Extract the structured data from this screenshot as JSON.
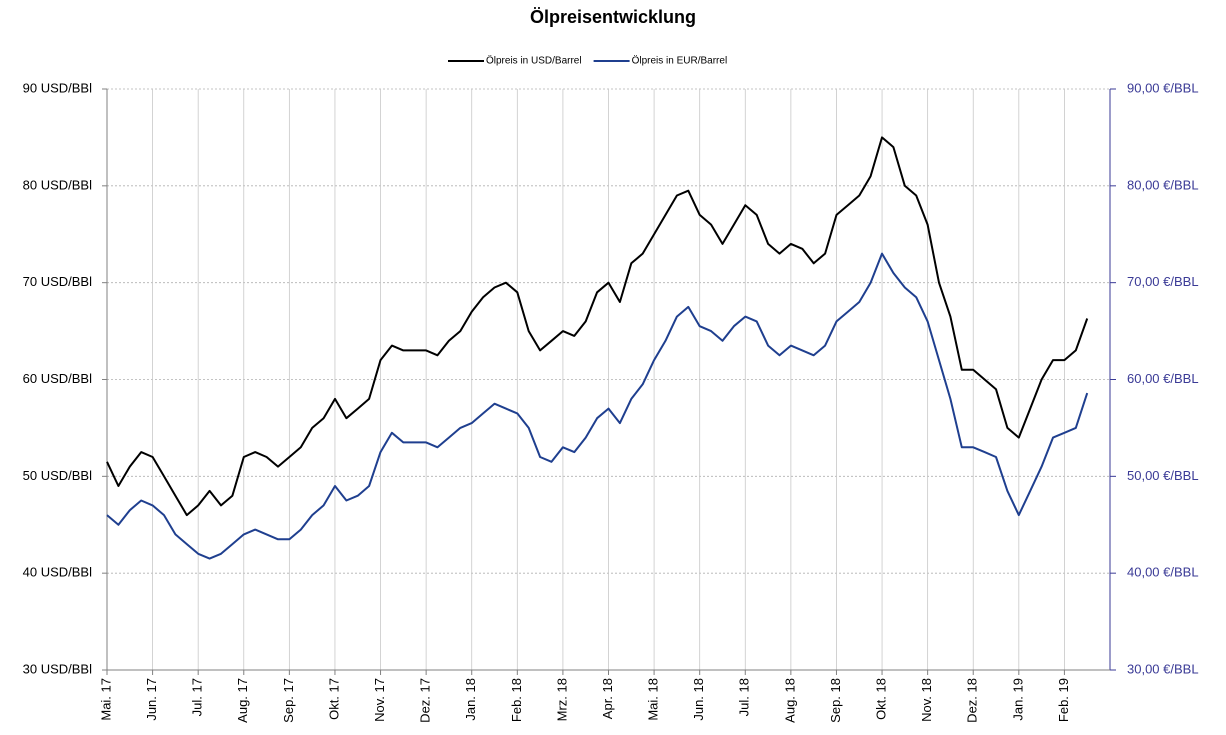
{
  "chart_data": {
    "type": "line",
    "title": "Ölpreisentwicklung",
    "categories": [
      "Mai. 17",
      null,
      null,
      null,
      "Jun. 17",
      null,
      null,
      null,
      "Jul. 17",
      null,
      null,
      null,
      "Aug. 17",
      null,
      null,
      null,
      "Sep. 17",
      null,
      null,
      null,
      "Okt. 17",
      null,
      null,
      null,
      "Nov. 17",
      null,
      null,
      null,
      "Dez. 17",
      null,
      null,
      null,
      "Jan. 18",
      null,
      null,
      null,
      "Feb. 18",
      null,
      null,
      null,
      "Mrz. 18",
      null,
      null,
      null,
      "Apr. 18",
      null,
      null,
      null,
      "Mai. 18",
      null,
      null,
      null,
      "Jun. 18",
      null,
      null,
      null,
      "Jul. 18",
      null,
      null,
      null,
      "Aug. 18",
      null,
      null,
      null,
      "Sep. 18",
      null,
      null,
      null,
      "Okt. 18",
      null,
      null,
      null,
      "Nov. 18",
      null,
      null,
      null,
      "Dez. 18",
      null,
      null,
      null,
      "Jan. 19",
      null,
      null,
      null,
      "Feb. 19",
      null,
      null
    ],
    "series": [
      {
        "name": "Ölpreis in USD/Barrel",
        "color": "#000000",
        "values": [
          51.5,
          49,
          51,
          52.5,
          52,
          50,
          48,
          46,
          47,
          48.5,
          47,
          48,
          52,
          52.5,
          52,
          51,
          52,
          53,
          55,
          56,
          58,
          56,
          57,
          58,
          62,
          63.5,
          63,
          63,
          63,
          62.5,
          64,
          65,
          67,
          68.5,
          69.5,
          70,
          69,
          65,
          63,
          64,
          65,
          64.5,
          66,
          69,
          70,
          68,
          72,
          73,
          75,
          77,
          79,
          79.5,
          77,
          76,
          74,
          76,
          78,
          77,
          74,
          73,
          74,
          73.5,
          72,
          73,
          77,
          78,
          79,
          81,
          85,
          84,
          80,
          79,
          76,
          70,
          66.5,
          61,
          61,
          60,
          59,
          55,
          54,
          57,
          60,
          62,
          62,
          63,
          66.3
        ]
      },
      {
        "name": "Ölpreis in EUR/Barrel",
        "color": "#1f3f8f",
        "axis": "y2",
        "values": [
          46,
          45,
          46.5,
          47.5,
          47,
          46,
          44,
          43,
          42,
          41.5,
          42,
          43,
          44,
          44.5,
          44,
          43.5,
          43.5,
          44.5,
          46,
          47,
          49,
          47.5,
          48,
          49,
          52.5,
          54.5,
          53.5,
          53.5,
          53.5,
          53,
          54,
          55,
          55.5,
          56.5,
          57.5,
          57,
          56.5,
          55,
          52,
          51.5,
          53,
          52.5,
          54,
          56,
          57,
          55.5,
          58,
          59.5,
          62,
          64,
          66.5,
          67.5,
          65.5,
          65,
          64,
          65.5,
          66.5,
          66,
          63.5,
          62.5,
          63.5,
          63,
          62.5,
          63.5,
          66,
          67,
          68,
          70,
          73,
          71,
          69.5,
          68.5,
          66,
          62,
          58,
          53,
          53,
          52.5,
          52,
          48.5,
          46,
          48.5,
          51,
          54,
          54.5,
          55,
          58.6
        ]
      }
    ],
    "ylim": [
      30,
      90
    ],
    "yticks": [
      {
        "value": 30,
        "label": "30 USD/BBl"
      },
      {
        "value": 40,
        "label": "40 USD/BBl"
      },
      {
        "value": 50,
        "label": "50 USD/BBl"
      },
      {
        "value": 60,
        "label": "60 USD/BBl"
      },
      {
        "value": 70,
        "label": "70 USD/BBl"
      },
      {
        "value": 80,
        "label": "80 USD/BBl"
      },
      {
        "value": 90,
        "label": "90 USD/BBl"
      }
    ],
    "y2lim": [
      30,
      90
    ],
    "y2ticks": [
      {
        "value": 30,
        "label": "30,00 €/BBL"
      },
      {
        "value": 40,
        "label": "40,00 €/BBL"
      },
      {
        "value": 50,
        "label": "50,00 €/BBL"
      },
      {
        "value": 60,
        "label": "60,00 €/BBL"
      },
      {
        "value": 70,
        "label": "70,00 €/BBL"
      },
      {
        "value": 80,
        "label": "80,00 €/BBL"
      },
      {
        "value": 90,
        "label": "90,00 €/BBL"
      }
    ],
    "grid": true,
    "legend": "top"
  }
}
